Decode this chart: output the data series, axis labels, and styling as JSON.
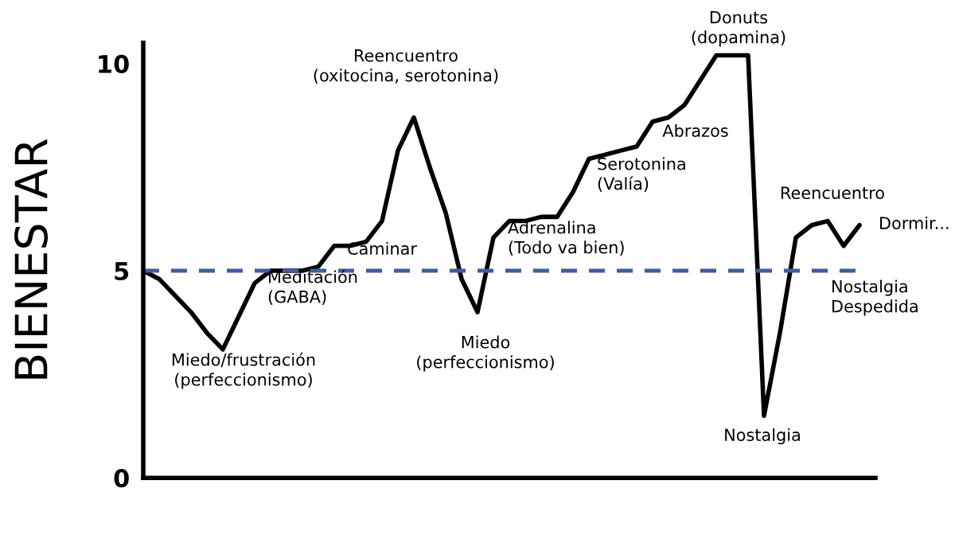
{
  "chart_data": {
    "type": "line",
    "ylabel": "BIENESTAR",
    "categories": [
      null,
      null,
      null,
      null,
      null,
      null,
      null,
      null,
      null,
      null,
      null,
      null,
      null,
      null,
      null,
      null,
      null,
      null,
      null,
      null,
      null,
      null,
      null,
      null,
      null,
      null,
      null,
      null,
      null,
      null,
      null,
      null,
      null,
      null,
      null,
      null,
      null,
      null,
      null,
      null,
      null,
      null,
      null,
      null,
      null,
      null
    ],
    "series": [
      {
        "color": "#000000",
        "values": [
          5.0,
          4.8,
          4.4,
          4.0,
          3.5,
          3.1,
          3.9,
          4.7,
          5.0,
          5.0,
          5.0,
          5.1,
          5.6,
          5.6,
          5.7,
          6.2,
          7.9,
          8.7,
          7.5,
          6.4,
          4.8,
          4.0,
          5.8,
          6.2,
          6.2,
          6.3,
          6.3,
          6.9,
          7.7,
          7.8,
          7.9,
          8.0,
          8.6,
          8.7,
          9.0,
          9.6,
          10.2,
          10.2,
          10.2,
          1.5,
          3.5,
          5.8,
          6.1,
          6.2,
          5.6,
          6.1
        ]
      }
    ],
    "ylim": [
      0,
      10.5
    ],
    "yticks": [
      0,
      5,
      10
    ],
    "grid": false,
    "legend": false,
    "marker": "none",
    "line_style": "solid",
    "ref_lines": [
      {
        "axis": "y",
        "value": 5,
        "color": "#3f5f9a",
        "line_style": "dashed"
      }
    ],
    "annotations": [
      "Miedo/frustración\n(perfeccionismo)",
      "Meditación\n(GABA)",
      "Caminar",
      "Reencuentro\n(oxitocina, serotonina)",
      "Miedo\n(perfeccionismo)",
      "Adrenalina\n(Todo va bien)",
      "Serotonina\n(Valía)",
      "Abrazos",
      "Donuts\n(dopamina)",
      "Reencuentro",
      "Dormir...",
      "Nostalgia\nDespedida",
      "Nostalgia"
    ]
  }
}
